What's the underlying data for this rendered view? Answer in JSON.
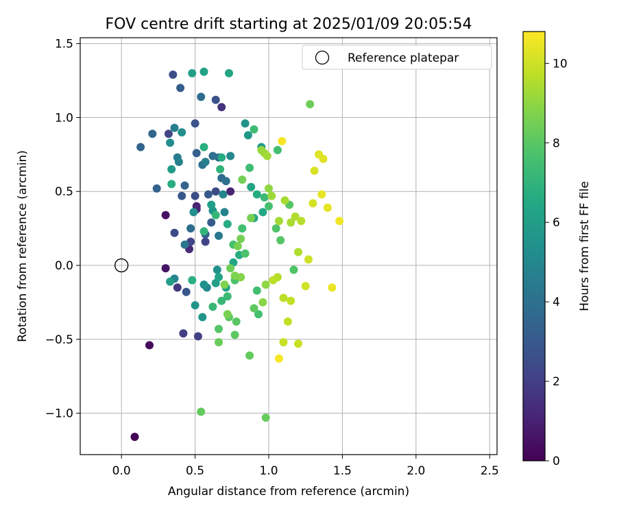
{
  "chart_data": {
    "type": "scatter",
    "title": "FOV centre drift starting at 2025/01/09 20:05:54",
    "xlabel": "Angular distance from reference (arcmin)",
    "ylabel": "Rotation from reference (arcmin)",
    "xlim": [
      -0.28,
      2.55
    ],
    "ylim": [
      -1.28,
      1.54
    ],
    "xticks": [
      0.0,
      0.5,
      1.0,
      1.5,
      2.0,
      2.5
    ],
    "xtick_labels": [
      "0.0",
      "0.5",
      "1.0",
      "1.5",
      "2.0",
      "2.5"
    ],
    "yticks": [
      -1.0,
      -0.5,
      0.0,
      0.5,
      1.0,
      1.5
    ],
    "ytick_labels": [
      "−1.0",
      "−0.5",
      "0.0",
      "0.5",
      "1.0",
      "1.5"
    ],
    "grid": true,
    "legend": {
      "placement": "upper right",
      "entries": [
        {
          "label": "Reference platepar",
          "marker": "open-circle",
          "color": "#000000"
        }
      ]
    },
    "reference_point": {
      "x": 0.0,
      "y": 0.0
    },
    "colorbar": {
      "label": "Hours from first FF file",
      "colormap": "viridis",
      "range": [
        0,
        10.8
      ],
      "ticks": [
        0,
        2,
        4,
        6,
        8,
        10
      ],
      "tick_labels": [
        "0",
        "2",
        "4",
        "6",
        "8",
        "10"
      ]
    },
    "color_variable": "hours_from_first_ff",
    "points": [
      [
        0.09,
        -1.16,
        0.1
      ],
      [
        0.19,
        -0.54,
        0.3
      ],
      [
        0.3,
        0.34,
        0.5
      ],
      [
        0.3,
        -0.02,
        0.6
      ],
      [
        0.51,
        0.4,
        1.0
      ],
      [
        0.51,
        0.38,
        1.1
      ],
      [
        0.46,
        0.11,
        1.3
      ],
      [
        0.74,
        0.5,
        1.1
      ],
      [
        0.68,
        1.07,
        1.6
      ],
      [
        0.38,
        -0.15,
        1.8
      ],
      [
        0.42,
        -0.46,
        2.0
      ],
      [
        0.52,
        -0.48,
        2.1
      ],
      [
        0.32,
        0.89,
        2.2
      ],
      [
        0.36,
        0.22,
        2.4
      ],
      [
        0.47,
        0.16,
        2.3
      ],
      [
        0.57,
        0.16,
        2.2
      ],
      [
        0.64,
        0.5,
        2.4
      ],
      [
        0.35,
        1.29,
        2.6
      ],
      [
        0.5,
        0.96,
        2.7
      ],
      [
        0.64,
        1.12,
        2.8
      ],
      [
        0.5,
        0.47,
        2.6
      ],
      [
        0.41,
        0.47,
        2.9
      ],
      [
        0.44,
        -0.18,
        2.9
      ],
      [
        0.59,
        0.48,
        3.0
      ],
      [
        0.61,
        0.29,
        3.1
      ],
      [
        0.57,
        0.21,
        3.2
      ],
      [
        0.4,
        1.2,
        3.2
      ],
      [
        0.51,
        0.76,
        3.3
      ],
      [
        0.13,
        0.8,
        3.5
      ],
      [
        0.21,
        0.89,
        3.6
      ],
      [
        0.24,
        0.52,
        3.4
      ],
      [
        0.43,
        0.54,
        3.4
      ],
      [
        0.66,
        0.73,
        3.6
      ],
      [
        0.54,
        1.14,
        3.8
      ],
      [
        0.68,
        0.59,
        3.7
      ],
      [
        0.62,
        0.74,
        3.9
      ],
      [
        0.47,
        0.25,
        3.8
      ],
      [
        0.55,
        0.68,
        4.0
      ],
      [
        0.71,
        0.57,
        4.0
      ],
      [
        0.43,
        0.14,
        4.2
      ],
      [
        0.66,
        0.2,
        4.3
      ],
      [
        0.36,
        0.93,
        4.6
      ],
      [
        0.38,
        0.73,
        4.5
      ],
      [
        0.39,
        0.7,
        4.7
      ],
      [
        0.57,
        0.7,
        4.6
      ],
      [
        0.7,
        0.36,
        4.8
      ],
      [
        0.36,
        -0.09,
        4.9
      ],
      [
        0.69,
        0.48,
        4.9
      ],
      [
        0.58,
        -0.15,
        5.0
      ],
      [
        0.74,
        0.74,
        5.0
      ],
      [
        0.33,
        0.83,
        5.2
      ],
      [
        0.41,
        0.9,
        5.3
      ],
      [
        0.49,
        0.36,
        5.3
      ],
      [
        0.65,
        -0.03,
        5.4
      ],
      [
        0.56,
        -0.13,
        5.4
      ],
      [
        0.62,
        0.37,
        5.5
      ],
      [
        0.84,
        0.96,
        5.5
      ],
      [
        0.86,
        0.88,
        5.7
      ],
      [
        0.95,
        0.8,
        5.8
      ],
      [
        0.55,
        -0.35,
        5.6
      ],
      [
        0.5,
        -0.27,
        5.6
      ],
      [
        0.34,
        0.65,
        5.9
      ],
      [
        0.33,
        -0.11,
        6.0
      ],
      [
        0.48,
        1.3,
        6.1
      ],
      [
        0.56,
        1.31,
        6.2
      ],
      [
        0.73,
        1.3,
        6.3
      ],
      [
        0.61,
        0.41,
        6.1
      ],
      [
        0.64,
        -0.12,
        6.0
      ],
      [
        0.66,
        -0.08,
        6.3
      ],
      [
        0.71,
        -0.15,
        6.2
      ],
      [
        0.76,
        0.02,
        6.4
      ],
      [
        0.88,
        0.53,
        6.3
      ],
      [
        0.9,
        0.32,
        6.4
      ],
      [
        0.92,
        0.48,
        6.6
      ],
      [
        0.96,
        0.36,
        6.5
      ],
      [
        0.72,
        0.28,
        6.6
      ],
      [
        0.8,
        0.07,
        6.7
      ],
      [
        0.56,
        0.8,
        6.8
      ],
      [
        0.34,
        0.55,
        6.7
      ],
      [
        0.48,
        -0.1,
        6.8
      ],
      [
        0.68,
        0.73,
        6.6
      ],
      [
        0.67,
        0.65,
        7.0
      ],
      [
        0.64,
        0.34,
        7.1
      ],
      [
        0.56,
        0.23,
        7.0
      ],
      [
        0.62,
        -0.28,
        7.2
      ],
      [
        0.72,
        -0.21,
        7.3
      ],
      [
        0.68,
        -0.24,
        7.2
      ],
      [
        0.87,
        0.66,
        7.4
      ],
      [
        0.9,
        0.92,
        7.4
      ],
      [
        0.97,
        0.46,
        7.3
      ],
      [
        1.06,
        0.78,
        7.5
      ],
      [
        0.76,
        0.14,
        7.6
      ],
      [
        0.82,
        0.25,
        7.5
      ],
      [
        0.84,
        0.08,
        7.7
      ],
      [
        0.92,
        -0.17,
        7.5
      ],
      [
        0.93,
        -0.33,
        7.6
      ],
      [
        1.0,
        0.4,
        7.6
      ],
      [
        1.05,
        0.25,
        7.8
      ],
      [
        1.08,
        0.17,
        7.9
      ],
      [
        1.14,
        0.41,
        7.9
      ],
      [
        1.17,
        -0.03,
        7.8
      ],
      [
        0.77,
        -0.1,
        7.7
      ],
      [
        0.66,
        -0.43,
        7.9
      ],
      [
        0.73,
        -0.35,
        8.0
      ],
      [
        0.77,
        -0.47,
        8.1
      ],
      [
        0.78,
        -0.38,
        8.0
      ],
      [
        0.87,
        -0.61,
        8.2
      ],
      [
        0.9,
        -0.29,
        8.1
      ],
      [
        0.66,
        -0.52,
        8.3
      ],
      [
        0.54,
        -0.99,
        8.2
      ],
      [
        0.98,
        -1.03,
        8.3
      ],
      [
        1.28,
        1.09,
        8.4
      ],
      [
        0.82,
        0.58,
        8.5
      ],
      [
        0.88,
        0.32,
        8.6
      ],
      [
        0.81,
        0.18,
        8.5
      ],
      [
        0.79,
        0.13,
        8.6
      ],
      [
        0.74,
        -0.02,
        8.4
      ],
      [
        0.7,
        -0.13,
        8.7
      ],
      [
        0.72,
        -0.33,
        8.6
      ],
      [
        0.81,
        -0.08,
        8.8
      ],
      [
        0.77,
        -0.07,
        8.7
      ],
      [
        0.96,
        -0.25,
        8.9
      ],
      [
        0.98,
        -0.13,
        9.0
      ],
      [
        1.0,
        0.52,
        9.0
      ],
      [
        0.95,
        0.78,
        9.1
      ],
      [
        0.97,
        0.76,
        9.2
      ],
      [
        0.99,
        0.74,
        9.3
      ],
      [
        1.02,
        0.47,
        9.2
      ],
      [
        1.07,
        0.3,
        9.3
      ],
      [
        1.11,
        0.44,
        9.4
      ],
      [
        1.15,
        0.29,
        9.4
      ],
      [
        1.18,
        0.33,
        9.5
      ],
      [
        1.22,
        0.3,
        9.6
      ],
      [
        1.2,
        0.09,
        9.5
      ],
      [
        1.06,
        -0.08,
        9.6
      ],
      [
        1.03,
        -0.1,
        9.7
      ],
      [
        1.1,
        -0.22,
        9.7
      ],
      [
        1.13,
        -0.38,
        9.8
      ],
      [
        1.15,
        -0.24,
        9.8
      ],
      [
        1.1,
        -0.52,
        9.9
      ],
      [
        1.2,
        -0.53,
        9.9
      ],
      [
        1.25,
        -0.14,
        10.0
      ],
      [
        1.27,
        0.04,
        10.0
      ],
      [
        1.3,
        0.42,
        10.1
      ],
      [
        1.31,
        0.64,
        10.2
      ],
      [
        1.34,
        0.75,
        10.3
      ],
      [
        1.37,
        0.72,
        10.3
      ],
      [
        1.36,
        0.48,
        10.4
      ],
      [
        1.4,
        0.39,
        10.4
      ],
      [
        1.43,
        -0.15,
        10.5
      ],
      [
        1.48,
        0.3,
        10.6
      ],
      [
        1.09,
        0.84,
        10.7
      ],
      [
        1.07,
        -0.63,
        10.7
      ]
    ]
  }
}
